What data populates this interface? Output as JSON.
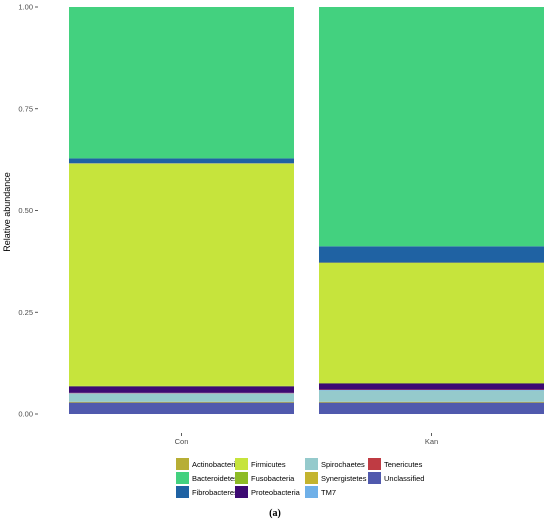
{
  "chart_data": {
    "type": "bar",
    "stacked": true,
    "categories": [
      "Con",
      "Kan"
    ],
    "ylabel": "Relative abundance",
    "ylim": [
      0,
      1
    ],
    "yticks": [
      "0.00",
      "0.25",
      "0.50",
      "0.75",
      "1.00"
    ],
    "series": [
      {
        "name": "Unclassified",
        "color": "#5059ad",
        "values": [
          0.028,
          0.028
        ]
      },
      {
        "name": "Actinobacteria",
        "color": "#b7ae35",
        "values": [
          0.002,
          0.002
        ]
      },
      {
        "name": "Spirochaetes",
        "color": "#95cacc",
        "values": [
          0.02,
          0.028
        ]
      },
      {
        "name": "TM7",
        "color": "#6fb0e8",
        "values": [
          0.001,
          0.001
        ]
      },
      {
        "name": "Tenericutes",
        "color": "#bf3b43",
        "values": [
          0.001,
          0.001
        ]
      },
      {
        "name": "Proteobacteria",
        "color": "#3d0a73",
        "values": [
          0.016,
          0.015
        ]
      },
      {
        "name": "Fusobacteria",
        "color": "#8dbb25",
        "values": [
          0.001,
          0.001
        ]
      },
      {
        "name": "Firmicutes",
        "color": "#c6e43c",
        "values": [
          0.546,
          0.295
        ]
      },
      {
        "name": "Synergistetes",
        "color": "#c4b42f",
        "values": [
          0.001,
          0.001
        ]
      },
      {
        "name": "Fibrobacteres",
        "color": "#1f62a3",
        "values": [
          0.012,
          0.04
        ]
      },
      {
        "name": "Bacteroidetes",
        "color": "#43d17f",
        "values": [
          0.372,
          0.588
        ]
      }
    ],
    "legend": [
      [
        "Actinobacteria",
        "Firmicutes",
        "Spirochaetes",
        "Tenericutes"
      ],
      [
        "Bacteroidetes",
        "Fusobacteria",
        "Synergistetes",
        "Unclassified"
      ],
      [
        "Fibrobacteres",
        "Proteobacteria",
        "TM7"
      ]
    ],
    "legend_position": "bottom"
  },
  "caption": "(a)"
}
